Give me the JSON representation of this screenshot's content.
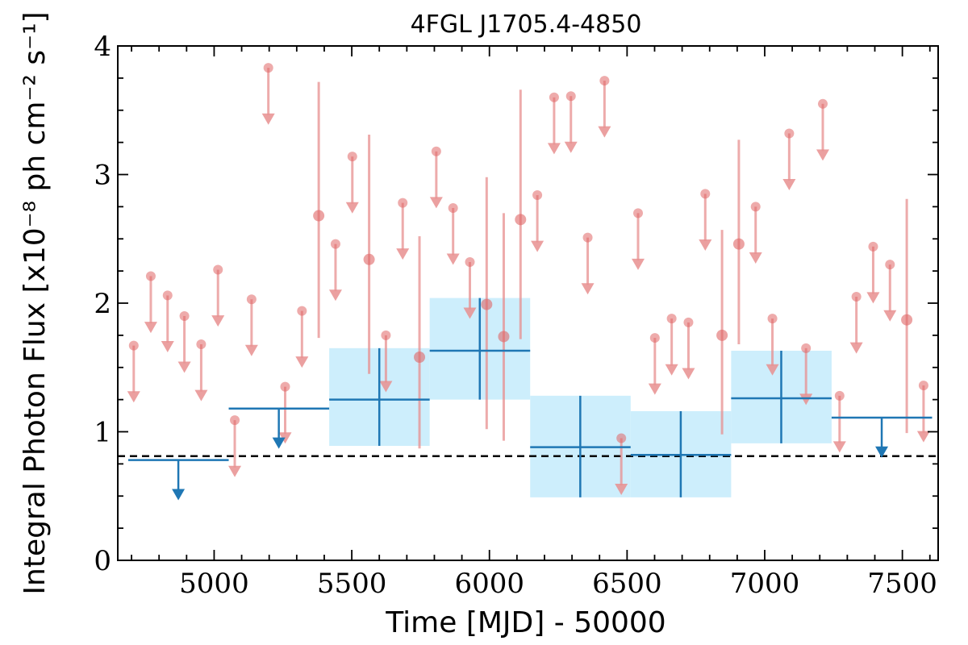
{
  "chart_data": {
    "type": "scatter",
    "title": "4FGL J1705.4-4850",
    "xlabel": "Time [MJD] - 50000",
    "ylabel": "Integral Photon Flux [x10⁻⁸ ph cm⁻² s⁻¹]",
    "xlim": [
      4650,
      7630
    ],
    "ylim": [
      0,
      4
    ],
    "xticks": [
      5000,
      5500,
      6000,
      6500,
      7000,
      7500
    ],
    "yticks": [
      0,
      1,
      2,
      3,
      4
    ],
    "grid": false,
    "reference_line": {
      "y": 0.81,
      "style": "dashed",
      "color": "#000000"
    },
    "colors": {
      "short_bins": "#e88f8f",
      "long_bins": "#1f77b4",
      "long_band": "#cdeefc"
    },
    "short_bins": {
      "points": [
        {
          "x": 5380,
          "y": 2.68,
          "ylo": 1.73,
          "yhi": 3.72
        },
        {
          "x": 5563,
          "y": 2.34,
          "ylo": 1.45,
          "yhi": 3.31
        },
        {
          "x": 5746,
          "y": 1.58,
          "ylo": 0.87,
          "yhi": 2.52
        },
        {
          "x": 5990,
          "y": 1.99,
          "ylo": 1.02,
          "yhi": 2.98
        },
        {
          "x": 6052,
          "y": 1.74,
          "ylo": 0.93,
          "yhi": 2.7
        },
        {
          "x": 6113,
          "y": 2.65,
          "ylo": 1.72,
          "yhi": 3.66
        },
        {
          "x": 6845,
          "y": 1.75,
          "ylo": 0.98,
          "yhi": 2.57
        },
        {
          "x": 6906,
          "y": 2.46,
          "ylo": 1.68,
          "yhi": 3.27
        },
        {
          "x": 7516,
          "y": 1.87,
          "ylo": 0.99,
          "yhi": 2.81
        }
      ],
      "upper_limits": [
        {
          "x": 4708,
          "y": 1.67
        },
        {
          "x": 4770,
          "y": 2.21
        },
        {
          "x": 4831,
          "y": 2.06
        },
        {
          "x": 4892,
          "y": 1.9
        },
        {
          "x": 4953,
          "y": 1.68
        },
        {
          "x": 5014,
          "y": 2.26
        },
        {
          "x": 5075,
          "y": 1.09
        },
        {
          "x": 5136,
          "y": 2.03
        },
        {
          "x": 5197,
          "y": 3.83
        },
        {
          "x": 5258,
          "y": 1.35
        },
        {
          "x": 5319,
          "y": 1.94
        },
        {
          "x": 5441,
          "y": 2.46
        },
        {
          "x": 5502,
          "y": 3.14
        },
        {
          "x": 5624,
          "y": 1.75
        },
        {
          "x": 5685,
          "y": 2.78
        },
        {
          "x": 5807,
          "y": 3.18
        },
        {
          "x": 5868,
          "y": 2.74
        },
        {
          "x": 5929,
          "y": 2.32
        },
        {
          "x": 6174,
          "y": 2.84
        },
        {
          "x": 6235,
          "y": 3.6
        },
        {
          "x": 6296,
          "y": 3.61
        },
        {
          "x": 6357,
          "y": 2.51
        },
        {
          "x": 6418,
          "y": 3.73
        },
        {
          "x": 6479,
          "y": 0.95
        },
        {
          "x": 6540,
          "y": 2.7
        },
        {
          "x": 6601,
          "y": 1.73
        },
        {
          "x": 6662,
          "y": 1.88
        },
        {
          "x": 6723,
          "y": 1.85
        },
        {
          "x": 6784,
          "y": 2.85
        },
        {
          "x": 6967,
          "y": 2.75
        },
        {
          "x": 7028,
          "y": 1.88
        },
        {
          "x": 7089,
          "y": 3.32
        },
        {
          "x": 7150,
          "y": 1.65
        },
        {
          "x": 7211,
          "y": 3.55
        },
        {
          "x": 7272,
          "y": 1.28
        },
        {
          "x": 7333,
          "y": 2.05
        },
        {
          "x": 7394,
          "y": 2.44
        },
        {
          "x": 7455,
          "y": 2.3
        },
        {
          "x": 7577,
          "y": 1.36
        }
      ]
    },
    "long_bins": {
      "points": [
        {
          "x0": 5418,
          "x1": 5783,
          "x": 5600,
          "y": 1.25,
          "ylo": 0.89,
          "yhi": 1.65
        },
        {
          "x0": 5783,
          "x1": 6148,
          "x": 5965,
          "y": 1.63,
          "ylo": 1.25,
          "yhi": 2.04
        },
        {
          "x0": 6148,
          "x1": 6513,
          "x": 6330,
          "y": 0.88,
          "ylo": 0.49,
          "yhi": 1.28
        },
        {
          "x0": 6513,
          "x1": 6878,
          "x": 6695,
          "y": 0.82,
          "ylo": 0.49,
          "yhi": 1.16
        },
        {
          "x0": 6878,
          "x1": 7243,
          "x": 7060,
          "y": 1.26,
          "ylo": 0.91,
          "yhi": 1.63
        }
      ],
      "upper_limits": [
        {
          "x0": 4688,
          "x1": 5053,
          "x": 4870,
          "y": 0.78
        },
        {
          "x0": 5053,
          "x1": 5418,
          "x": 5235,
          "y": 1.18
        },
        {
          "x0": 7243,
          "x1": 7608,
          "x": 7425,
          "y": 1.11
        }
      ]
    }
  }
}
